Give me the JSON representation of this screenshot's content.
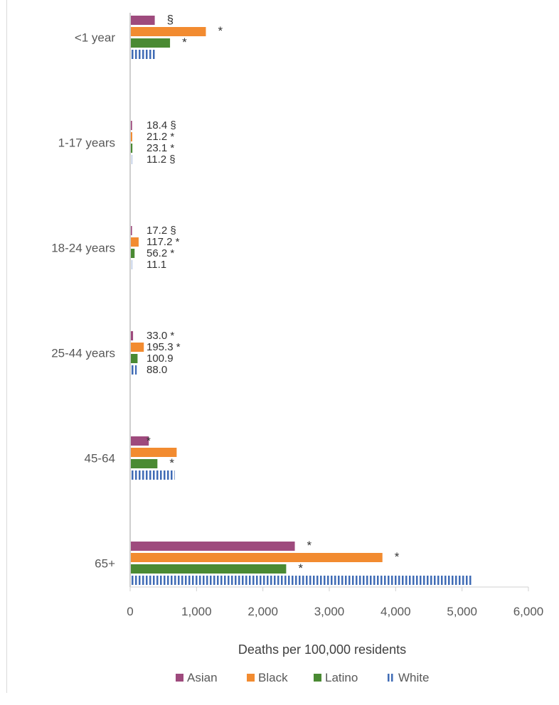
{
  "chart_data": {
    "type": "bar",
    "orientation": "horizontal",
    "categories": [
      "<1 year",
      "1-17 years",
      "18-24 years",
      "25-44 years",
      "45-64",
      "65+"
    ],
    "xlabel": "Deaths per 100,000 residents",
    "xlim": [
      0,
      6000
    ],
    "xticks": [
      0,
      1000,
      2000,
      3000,
      4000,
      5000,
      6000
    ],
    "xtick_labels": [
      "0",
      "1,000",
      "2,000",
      "3,000",
      "4,000",
      "5,000",
      "6,000"
    ],
    "grid": false,
    "legend_position": "bottom",
    "series": [
      {
        "name": "Asian",
        "color": "#9e4a7d",
        "pattern": "solid",
        "values": [
          360,
          18.4,
          17.2,
          33.0,
          270,
          2470
        ],
        "labels": [
          "§",
          "18.4 §",
          "17.2 §",
          "33.0 *",
          "*",
          "*"
        ]
      },
      {
        "name": "Black",
        "color": "#f28b30",
        "pattern": "solid",
        "values": [
          1130,
          21.2,
          117.2,
          195.3,
          690,
          3790
        ],
        "labels": [
          "*",
          "21.2 *",
          "117.2 *",
          "195.3 *",
          "",
          "*"
        ]
      },
      {
        "name": "Latino",
        "color": "#4a8a33",
        "pattern": "solid",
        "values": [
          590,
          23.1,
          56.2,
          100.9,
          400,
          2340
        ],
        "labels": [
          "*",
          "23.1 *",
          "56.2 *",
          "100.9",
          "*",
          "*"
        ]
      },
      {
        "name": "White",
        "color": "#3f6bb5",
        "pattern": "vertical-stripes",
        "values": [
          380,
          11.2,
          11.1,
          88.0,
          660,
          5150
        ],
        "labels": [
          "",
          "11.2 §",
          "11.1",
          "88.0",
          "",
          ""
        ]
      }
    ]
  }
}
